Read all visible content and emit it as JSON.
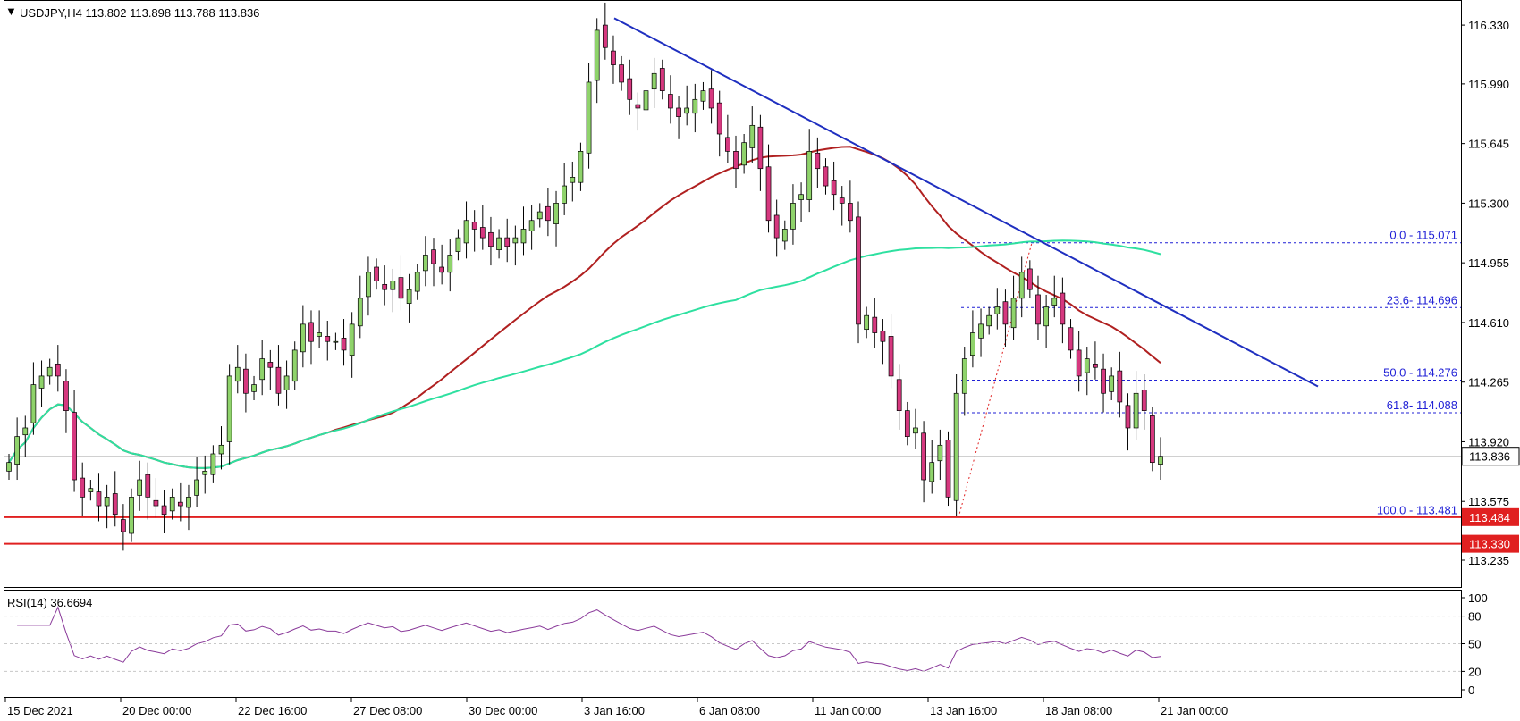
{
  "header": {
    "symbol_info": "USDJPY,H4  113.802 113.898 113.788 113.836",
    "rsi_info": "RSI(14) 36.6694"
  },
  "colors": {
    "bull_candle": "#8fd36b",
    "bear_candle": "#d6387f",
    "candle_wick": "#000000",
    "ma_slow": "#b02020",
    "ma_fast": "#2ee0a0",
    "trendline": "#1f2fc0",
    "fib": "#1f1fd6",
    "support": "#e02020",
    "rsi_line": "#8a3a9a",
    "current_price_bg": "#ffffff"
  },
  "price_axis": {
    "ticks": [
      "116.330",
      "115.990",
      "115.645",
      "115.300",
      "114.955",
      "114.610",
      "114.265",
      "113.920",
      "113.575",
      "113.235"
    ],
    "current_price": "113.836",
    "support_upper": "113.484",
    "support_lower": "113.330"
  },
  "rsi_axis": {
    "ticks": [
      "100",
      "80",
      "50",
      "20",
      "0"
    ]
  },
  "time_axis": {
    "labels": [
      "15 Dec 2021",
      "20 Dec 00:00",
      "22 Dec 16:00",
      "27 Dec 08:00",
      "30 Dec 00:00",
      "3 Jan 16:00",
      "6 Jan 08:00",
      "11 Jan 00:00",
      "13 Jan 16:00",
      "18 Jan 08:00",
      "21 Jan 00:00"
    ]
  },
  "fibonacci": {
    "levels": [
      {
        "label": "0.0 - 115.071",
        "price": 115.071
      },
      {
        "label": "23.6- 114.696",
        "price": 114.696
      },
      {
        "label": "50.0 - 114.276",
        "price": 114.276
      },
      {
        "label": "61.8- 114.088",
        "price": 114.088
      },
      {
        "label": "100.0 - 113.481",
        "price": 113.481
      }
    ]
  },
  "chart_data": {
    "type": "candlestick",
    "title": "USDJPY,H4",
    "ylim": [
      113.08,
      116.47
    ],
    "ohlc_summary": {
      "open": 113.802,
      "high": 113.898,
      "low": 113.788,
      "close": 113.836
    },
    "support_levels": [
      113.484,
      113.33
    ],
    "closes": [
      113.8,
      113.95,
      114.0,
      114.25,
      114.3,
      114.35,
      114.3,
      114.1,
      113.7,
      113.6,
      113.65,
      113.55,
      113.6,
      113.5,
      113.4,
      113.6,
      113.7,
      113.6,
      113.55,
      113.5,
      113.6,
      113.55,
      113.6,
      113.7,
      113.75,
      113.85,
      113.9,
      114.3,
      114.35,
      114.2,
      114.25,
      114.4,
      114.35,
      114.2,
      114.3,
      114.45,
      114.6,
      114.5,
      114.55,
      114.5,
      114.5,
      114.45,
      114.6,
      114.75,
      114.9,
      114.85,
      114.8,
      114.85,
      114.75,
      114.8,
      114.9,
      115.0,
      114.95,
      114.9,
      115.0,
      115.1,
      115.2,
      115.15,
      115.1,
      115.05,
      115.1,
      115.05,
      115.1,
      115.15,
      115.2,
      115.25,
      115.2,
      115.3,
      115.4,
      115.45,
      115.6,
      116.0,
      116.3,
      116.2,
      116.1,
      116.0,
      115.9,
      115.85,
      115.95,
      116.05,
      115.95,
      115.85,
      115.8,
      115.85,
      115.9,
      115.95,
      115.85,
      115.7,
      115.6,
      115.5,
      115.65,
      115.75,
      115.5,
      115.2,
      115.1,
      115.15,
      115.3,
      115.35,
      115.6,
      115.5,
      115.4,
      115.35,
      115.3,
      115.2,
      114.6,
      114.65,
      114.55,
      114.5,
      114.3,
      114.1,
      113.95,
      114.0,
      113.7,
      113.8,
      113.9,
      113.6,
      114.2,
      114.4,
      114.55,
      114.6,
      114.65,
      114.7,
      114.6,
      114.75,
      114.9,
      114.8,
      114.6,
      114.7,
      114.75,
      114.6,
      114.45,
      114.3,
      114.4,
      114.35,
      114.2,
      114.3,
      114.15,
      114.0,
      114.2,
      114.1,
      113.8,
      113.836
    ]
  }
}
